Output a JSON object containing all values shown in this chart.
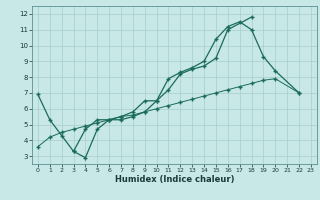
{
  "xlabel": "Humidex (Indice chaleur)",
  "bg_color": "#c8e8e8",
  "grid_color": "#a8cccc",
  "line_color": "#1a6b5a",
  "xlim": [
    -0.5,
    23.5
  ],
  "ylim": [
    2.5,
    12.5
  ],
  "xticks": [
    0,
    1,
    2,
    3,
    4,
    5,
    6,
    7,
    8,
    9,
    10,
    11,
    12,
    13,
    14,
    15,
    16,
    17,
    18,
    19,
    20,
    21,
    22,
    23
  ],
  "yticks": [
    3,
    4,
    5,
    6,
    7,
    8,
    9,
    10,
    11,
    12
  ],
  "line1_x": [
    0,
    1,
    2,
    3,
    4,
    5,
    6,
    7,
    8,
    9,
    10,
    11,
    12,
    13,
    14,
    15,
    16,
    17,
    18,
    19,
    20,
    22
  ],
  "line1_y": [
    6.9,
    5.3,
    4.3,
    3.3,
    4.7,
    5.3,
    5.3,
    5.5,
    5.8,
    6.5,
    6.5,
    7.9,
    8.3,
    8.6,
    9.0,
    10.4,
    11.2,
    11.5,
    11.0,
    9.3,
    8.4,
    7.0
  ],
  "line2_x": [
    3,
    4,
    5,
    6,
    7,
    8,
    9,
    10,
    11,
    12,
    13,
    14,
    15,
    16,
    18
  ],
  "line2_y": [
    3.3,
    2.9,
    4.7,
    5.3,
    5.3,
    5.5,
    5.8,
    6.5,
    7.2,
    8.2,
    8.5,
    8.7,
    9.2,
    11.0,
    11.8
  ],
  "line3_x": [
    0,
    1,
    2,
    3,
    4,
    5,
    6,
    7,
    8,
    9,
    10,
    11,
    12,
    13,
    14,
    15,
    16,
    17,
    18,
    19,
    20,
    22
  ],
  "line3_y": [
    3.6,
    4.2,
    4.5,
    4.7,
    4.9,
    5.1,
    5.3,
    5.5,
    5.6,
    5.8,
    6.0,
    6.2,
    6.4,
    6.6,
    6.8,
    7.0,
    7.2,
    7.4,
    7.6,
    7.8,
    7.9,
    7.0
  ]
}
